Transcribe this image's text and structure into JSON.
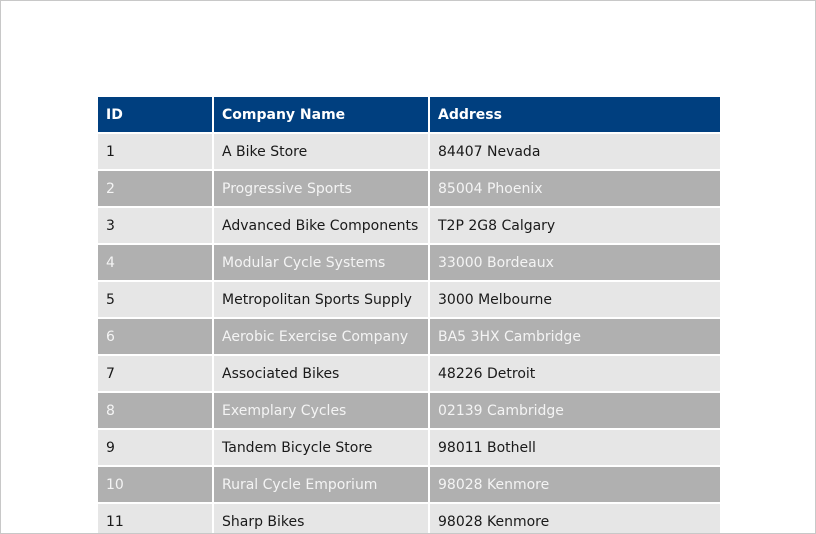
{
  "table": {
    "headers": [
      "ID",
      "Company Name",
      "Address"
    ],
    "rows": [
      {
        "id": "1",
        "company": "A Bike Store",
        "address": "84407 Nevada"
      },
      {
        "id": "2",
        "company": "Progressive Sports",
        "address": "85004 Phoenix"
      },
      {
        "id": "3",
        "company": "Advanced Bike Components",
        "address": "T2P 2G8 Calgary"
      },
      {
        "id": "4",
        "company": "Modular Cycle Systems",
        "address": "33000 Bordeaux"
      },
      {
        "id": "5",
        "company": "Metropolitan Sports Supply",
        "address": "3000 Melbourne"
      },
      {
        "id": "6",
        "company": "Aerobic Exercise Company",
        "address": "BA5 3HX Cambridge"
      },
      {
        "id": "7",
        "company": "Associated Bikes",
        "address": "48226 Detroit"
      },
      {
        "id": "8",
        "company": "Exemplary Cycles",
        "address": "02139 Cambridge"
      },
      {
        "id": "9",
        "company": "Tandem Bicycle Store",
        "address": "98011 Bothell"
      },
      {
        "id": "10",
        "company": "Rural Cycle Emporium",
        "address": "98028 Kenmore"
      },
      {
        "id": "11",
        "company": "Sharp Bikes",
        "address": "98028 Kenmore"
      }
    ]
  },
  "colors": {
    "header_bg": "#003f7f",
    "row_light": "#e6e6e6",
    "row_dark": "#b0b0b0"
  }
}
